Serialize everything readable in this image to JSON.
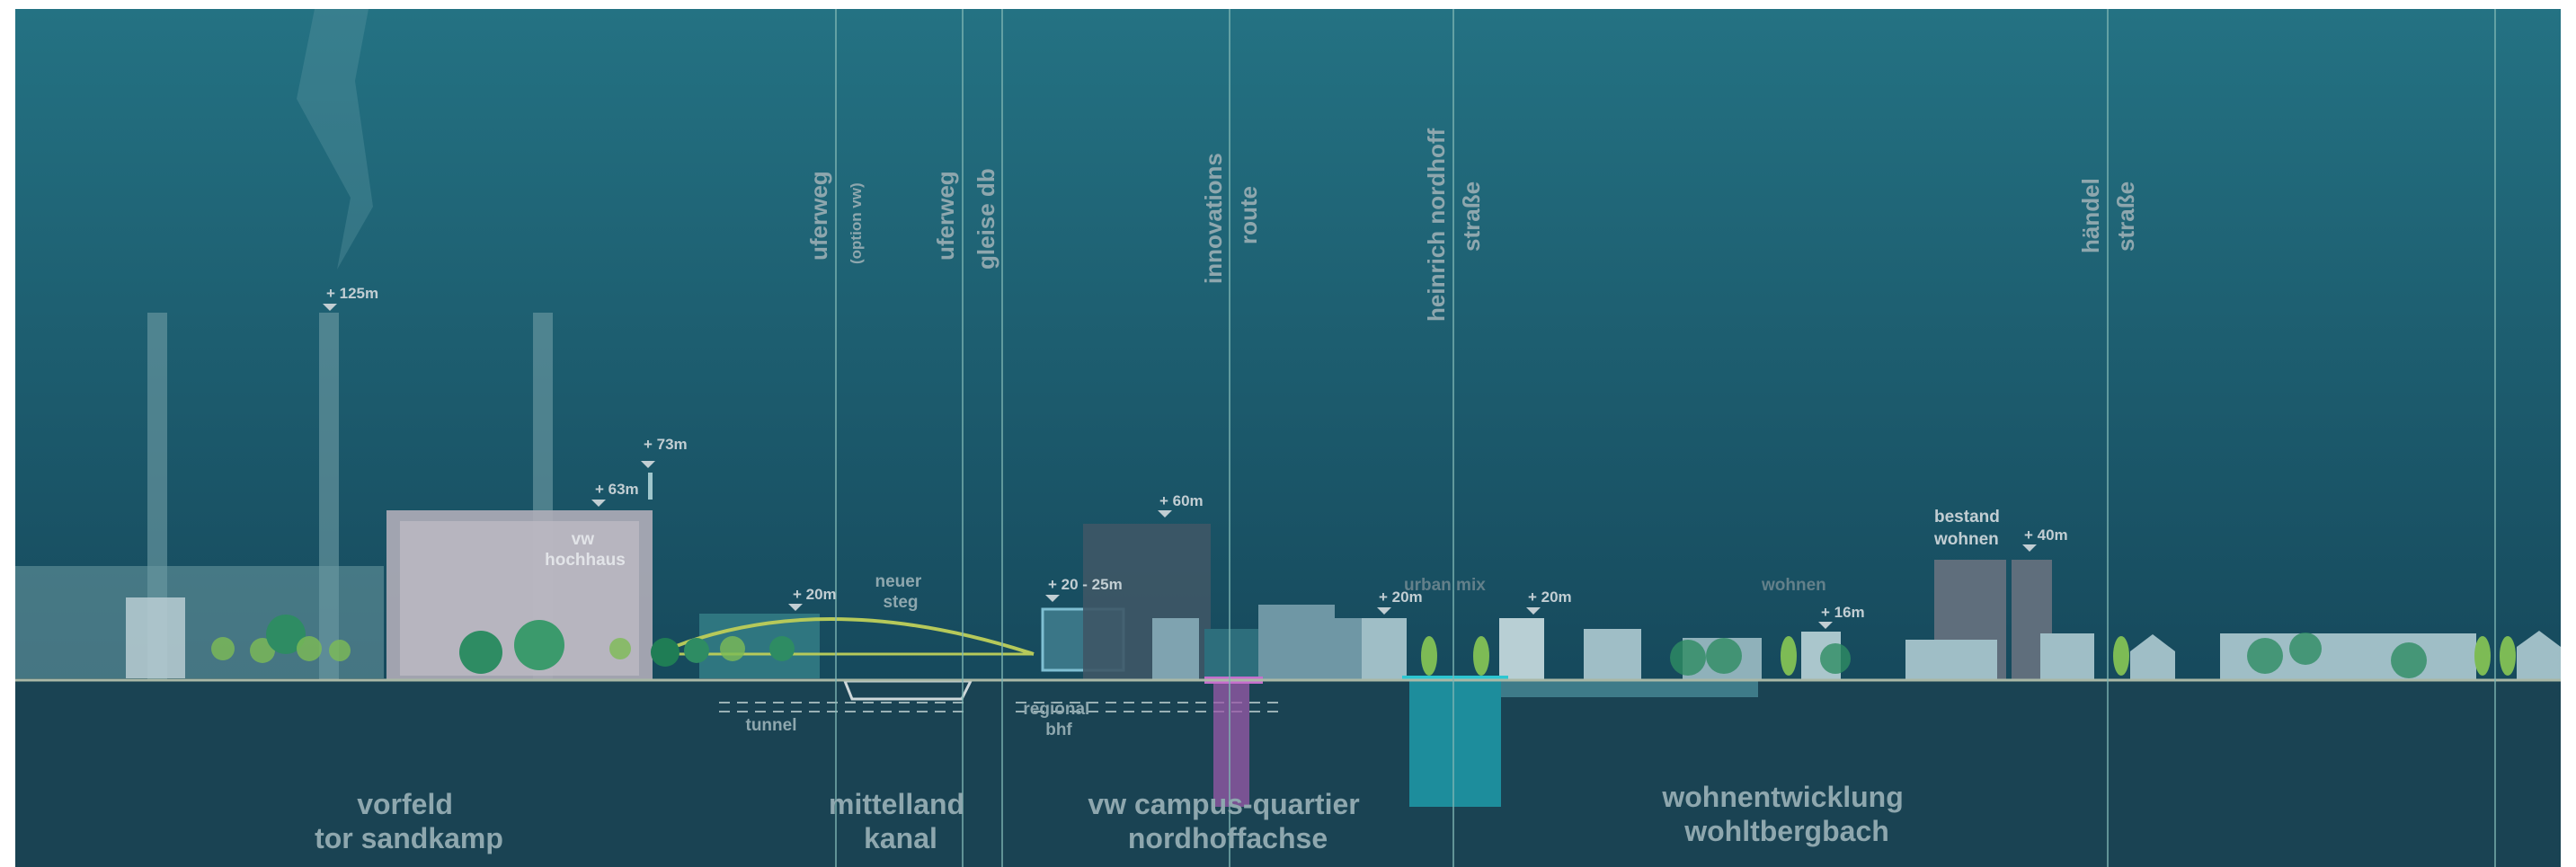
{
  "colors": {
    "sky_top": "#236f80",
    "sky_bottom": "#185266",
    "ground": "#1a4353",
    "text_light": "#c2ced3",
    "text_mid": "#8ea7ae",
    "text_dim": "#63808a",
    "line": "#7fb6b3",
    "tree_green": "#7dbb55",
    "tree_dark": "#2e8c63",
    "magenta": "#9a58a8",
    "cyan": "#1ea0ac"
  },
  "heights": {
    "chimney": "+ 125m",
    "hochhaus_a": "+ 63m",
    "hochhaus_b": "+ 73m",
    "canal_building": "+ 20m",
    "station_building": "+ 20 - 25m",
    "campus_tower": "+ 60m",
    "urban_mix": "+ 20m",
    "urban_mix_b": "+ 20m",
    "wohnen": "+ 16m",
    "bestand": "+ 40m"
  },
  "labels": {
    "vw_hochhaus": [
      "vw",
      "hochhaus"
    ],
    "neuer_steg": [
      "neuer",
      "steg"
    ],
    "tunnel": "tunnel",
    "regional_bhf": [
      "regional",
      "bhf"
    ],
    "urban_mix": "urban mix",
    "wohnen": "wohnen",
    "bestand_wohnen": [
      "bestand",
      "wohnen"
    ]
  },
  "vertical_labels": {
    "uferweg_1": "uferweg",
    "option_vw": "(option vw)",
    "uferweg_2": "uferweg",
    "gleise_db": "gleise db",
    "innovations": "innovations",
    "route": "route",
    "heinrich_nordhoff": "heinrich nordhoff",
    "strasse_1": "straße",
    "haendel": "händel",
    "strasse_2": "straße"
  },
  "zones": {
    "vorfeld": [
      "vorfeld",
      "tor sandkamp"
    ],
    "mittelland": [
      "mittelland",
      "kanal"
    ],
    "campus": [
      "vw campus-quartier",
      "nordhoffachse"
    ],
    "wohnentwicklung": [
      "wohnentwicklung",
      "wohltbergbach"
    ]
  }
}
